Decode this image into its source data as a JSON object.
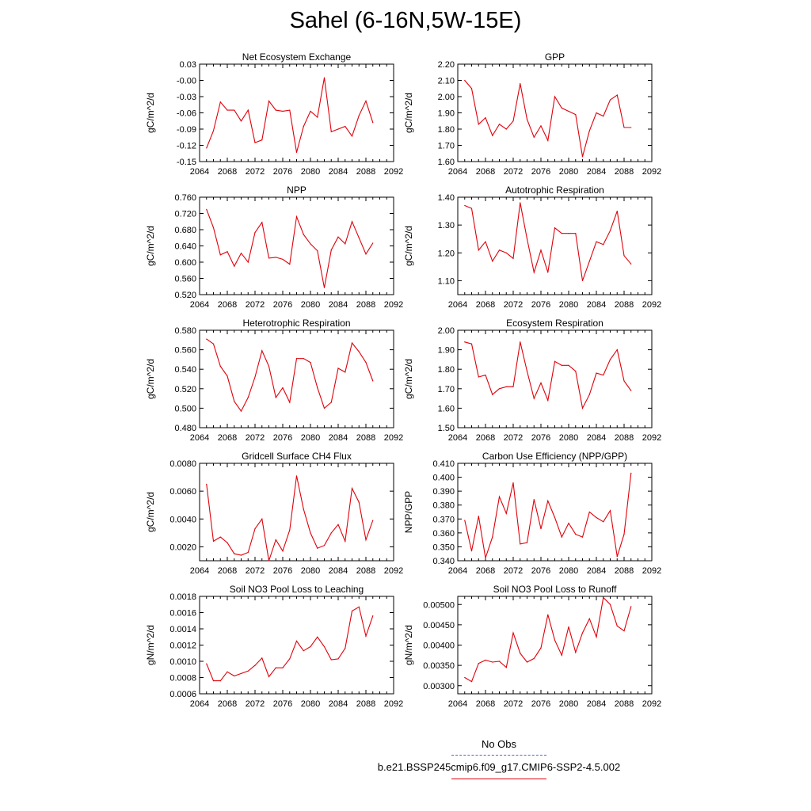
{
  "title": "Sahel (6-16N,5W-15E)",
  "legend": {
    "obs_label": "No Obs",
    "obs_color": "#5560d8",
    "case_label": "b.e21.BSSP245cmip6.f09_g17.CMIP6-SSP2-4.5.002",
    "case_color": "#e0000a"
  },
  "chart_data": [
    {
      "type": "line",
      "title": "Net Ecosystem Exchange",
      "ylabel": "gC/m^2/d",
      "xlim": [
        2064,
        2092
      ],
      "xticks": [
        "2064",
        "2068",
        "2072",
        "2076",
        "2080",
        "2084",
        "2088",
        "2092"
      ],
      "ylim": [
        -0.15,
        0.03
      ],
      "yticks": [
        "0.03",
        "-0.00",
        "-0.03",
        "-0.06",
        "-0.09",
        "-0.12",
        "-0.15"
      ],
      "x": [
        2065,
        2066,
        2067,
        2068,
        2069,
        2070,
        2071,
        2072,
        2073,
        2074,
        2075,
        2076,
        2077,
        2078,
        2079,
        2080,
        2081,
        2082,
        2083,
        2084,
        2085,
        2086,
        2087,
        2088,
        2089
      ],
      "values": [
        -0.125,
        -0.093,
        -0.04,
        -0.055,
        -0.055,
        -0.075,
        -0.055,
        -0.115,
        -0.11,
        -0.038,
        -0.055,
        -0.057,
        -0.055,
        -0.133,
        -0.085,
        -0.057,
        -0.068,
        0.005,
        -0.095,
        -0.09,
        -0.085,
        -0.103,
        -0.065,
        -0.038,
        -0.078
      ]
    },
    {
      "type": "line",
      "title": "GPP",
      "ylabel": "gC/m^2/d",
      "xlim": [
        2064,
        2092
      ],
      "xticks": [
        "2064",
        "2068",
        "2072",
        "2076",
        "2080",
        "2084",
        "2088",
        "2092"
      ],
      "ylim": [
        1.6,
        2.2
      ],
      "yticks": [
        "2.20",
        "2.10",
        "2.00",
        "1.90",
        "1.80",
        "1.70",
        "1.60"
      ],
      "x": [
        2065,
        2066,
        2067,
        2068,
        2069,
        2070,
        2071,
        2072,
        2073,
        2074,
        2075,
        2076,
        2077,
        2078,
        2079,
        2080,
        2081,
        2082,
        2083,
        2084,
        2085,
        2086,
        2087,
        2088,
        2089
      ],
      "values": [
        2.1,
        2.05,
        1.83,
        1.87,
        1.76,
        1.83,
        1.8,
        1.85,
        2.08,
        1.86,
        1.75,
        1.82,
        1.73,
        2.0,
        1.93,
        1.91,
        1.89,
        1.63,
        1.79,
        1.9,
        1.88,
        1.98,
        2.01,
        1.81,
        1.81
      ]
    },
    {
      "type": "line",
      "title": "NPP",
      "ylabel": "gC/m^2/d",
      "xlim": [
        2064,
        2092
      ],
      "xticks": [
        "2064",
        "2068",
        "2072",
        "2076",
        "2080",
        "2084",
        "2088",
        "2092"
      ],
      "ylim": [
        0.52,
        0.76
      ],
      "yticks": [
        "0.760",
        "0.720",
        "0.680",
        "0.640",
        "0.600",
        "0.560",
        "0.520"
      ],
      "x": [
        2065,
        2066,
        2067,
        2068,
        2069,
        2070,
        2071,
        2072,
        2073,
        2074,
        2075,
        2076,
        2077,
        2078,
        2079,
        2080,
        2081,
        2082,
        2083,
        2084,
        2085,
        2086,
        2087,
        2088,
        2089
      ],
      "values": [
        0.73,
        0.685,
        0.618,
        0.626,
        0.59,
        0.622,
        0.6,
        0.673,
        0.698,
        0.61,
        0.612,
        0.607,
        0.595,
        0.712,
        0.668,
        0.645,
        0.628,
        0.537,
        0.63,
        0.662,
        0.645,
        0.7,
        0.66,
        0.62,
        0.647
      ]
    },
    {
      "type": "line",
      "title": "Autotrophic Respiration",
      "ylabel": "gC/m^2/d",
      "xlim": [
        2064,
        2092
      ],
      "xticks": [
        "2064",
        "2068",
        "2072",
        "2076",
        "2080",
        "2084",
        "2088",
        "2092"
      ],
      "ylim": [
        1.05,
        1.4
      ],
      "yticks": [
        "1.40",
        "1.30",
        "1.20",
        "1.10"
      ],
      "x": [
        2065,
        2066,
        2067,
        2068,
        2069,
        2070,
        2071,
        2072,
        2073,
        2074,
        2075,
        2076,
        2077,
        2078,
        2079,
        2080,
        2081,
        2082,
        2083,
        2084,
        2085,
        2086,
        2087,
        2088,
        2089
      ],
      "values": [
        1.37,
        1.36,
        1.21,
        1.24,
        1.17,
        1.21,
        1.2,
        1.18,
        1.38,
        1.25,
        1.13,
        1.21,
        1.13,
        1.29,
        1.27,
        1.27,
        1.27,
        1.1,
        1.17,
        1.24,
        1.23,
        1.28,
        1.35,
        1.19,
        1.16
      ]
    },
    {
      "type": "line",
      "title": "Heterotrophic Respiration",
      "ylabel": "gC/m^2/d",
      "xlim": [
        2064,
        2092
      ],
      "xticks": [
        "2064",
        "2068",
        "2072",
        "2076",
        "2080",
        "2084",
        "2088",
        "2092"
      ],
      "ylim": [
        0.48,
        0.58
      ],
      "yticks": [
        "0.580",
        "0.560",
        "0.540",
        "0.520",
        "0.500",
        "0.480"
      ],
      "x": [
        2065,
        2066,
        2067,
        2068,
        2069,
        2070,
        2071,
        2072,
        2073,
        2074,
        2075,
        2076,
        2077,
        2078,
        2079,
        2080,
        2081,
        2082,
        2083,
        2084,
        2085,
        2086,
        2087,
        2088,
        2089
      ],
      "values": [
        0.571,
        0.566,
        0.543,
        0.533,
        0.507,
        0.497,
        0.511,
        0.532,
        0.559,
        0.543,
        0.511,
        0.521,
        0.506,
        0.551,
        0.551,
        0.547,
        0.521,
        0.5,
        0.506,
        0.541,
        0.537,
        0.567,
        0.558,
        0.547,
        0.528
      ]
    },
    {
      "type": "line",
      "title": "Ecosystem Respiration",
      "ylabel": "gC/m^2/d",
      "xlim": [
        2064,
        2092
      ],
      "xticks": [
        "2064",
        "2068",
        "2072",
        "2076",
        "2080",
        "2084",
        "2088",
        "2092"
      ],
      "ylim": [
        1.5,
        2.0
      ],
      "yticks": [
        "2.00",
        "1.90",
        "1.80",
        "1.70",
        "1.60",
        "1.50"
      ],
      "x": [
        2065,
        2066,
        2067,
        2068,
        2069,
        2070,
        2071,
        2072,
        2073,
        2074,
        2075,
        2076,
        2077,
        2078,
        2079,
        2080,
        2081,
        2082,
        2083,
        2084,
        2085,
        2086,
        2087,
        2088,
        2089
      ],
      "values": [
        1.94,
        1.93,
        1.76,
        1.77,
        1.67,
        1.7,
        1.71,
        1.71,
        1.94,
        1.79,
        1.65,
        1.73,
        1.64,
        1.84,
        1.82,
        1.82,
        1.79,
        1.6,
        1.67,
        1.78,
        1.77,
        1.85,
        1.9,
        1.74,
        1.69
      ]
    },
    {
      "type": "line",
      "title": "Gridcell Surface CH4 Flux",
      "ylabel": "gC/m^2/d",
      "xlim": [
        2064,
        2092
      ],
      "xticks": [
        "2064",
        "2068",
        "2072",
        "2076",
        "2080",
        "2084",
        "2088",
        "2092"
      ],
      "ylim": [
        0.001,
        0.008
      ],
      "yticks": [
        "0.0080",
        "0.0060",
        "0.0040",
        "0.0020"
      ],
      "x": [
        2065,
        2066,
        2067,
        2068,
        2069,
        2070,
        2071,
        2072,
        2073,
        2074,
        2075,
        2076,
        2077,
        2078,
        2079,
        2080,
        2081,
        2082,
        2083,
        2084,
        2085,
        2086,
        2087,
        2088,
        2089
      ],
      "values": [
        0.0065,
        0.0024,
        0.0027,
        0.0023,
        0.0015,
        0.0014,
        0.0016,
        0.0033,
        0.004,
        0.001,
        0.0025,
        0.0017,
        0.0032,
        0.0071,
        0.0047,
        0.003,
        0.0019,
        0.0021,
        0.003,
        0.0036,
        0.0024,
        0.0062,
        0.0052,
        0.0025,
        0.0039
      ]
    },
    {
      "type": "line",
      "title": "Carbon Use Efficiency (NPP/GPP)",
      "ylabel": "NPP/GPP",
      "xlim": [
        2064,
        2092
      ],
      "xticks": [
        "2064",
        "2068",
        "2072",
        "2076",
        "2080",
        "2084",
        "2088",
        "2092"
      ],
      "ylim": [
        0.34,
        0.41
      ],
      "yticks": [
        "0.410",
        "0.400",
        "0.390",
        "0.380",
        "0.370",
        "0.360",
        "0.350",
        "0.340"
      ],
      "x": [
        2065,
        2066,
        2067,
        2068,
        2069,
        2070,
        2071,
        2072,
        2073,
        2074,
        2075,
        2076,
        2077,
        2078,
        2079,
        2080,
        2081,
        2082,
        2083,
        2084,
        2085,
        2086,
        2087,
        2088,
        2089
      ],
      "values": [
        0.369,
        0.347,
        0.372,
        0.342,
        0.357,
        0.386,
        0.374,
        0.396,
        0.352,
        0.353,
        0.384,
        0.363,
        0.383,
        0.371,
        0.357,
        0.367,
        0.359,
        0.357,
        0.375,
        0.371,
        0.368,
        0.376,
        0.343,
        0.359,
        0.403
      ]
    },
    {
      "type": "line",
      "title": "Soil NO3 Pool Loss to Leaching",
      "ylabel": "gN/m^2/d",
      "xlim": [
        2064,
        2092
      ],
      "xticks": [
        "2064",
        "2068",
        "2072",
        "2076",
        "2080",
        "2084",
        "2088",
        "2092"
      ],
      "ylim": [
        0.0006,
        0.0018
      ],
      "yticks": [
        "0.0018",
        "0.0016",
        "0.0014",
        "0.0012",
        "0.0010",
        "0.0008",
        "0.0006"
      ],
      "x": [
        2065,
        2066,
        2067,
        2068,
        2069,
        2070,
        2071,
        2072,
        2073,
        2074,
        2075,
        2076,
        2077,
        2078,
        2079,
        2080,
        2081,
        2082,
        2083,
        2084,
        2085,
        2086,
        2087,
        2088,
        2089
      ],
      "values": [
        0.00097,
        0.00076,
        0.00076,
        0.00087,
        0.00082,
        0.00085,
        0.00088,
        0.00095,
        0.00104,
        0.00081,
        0.00092,
        0.00092,
        0.00103,
        0.00125,
        0.00113,
        0.00118,
        0.0013,
        0.00118,
        0.00102,
        0.00103,
        0.00116,
        0.00162,
        0.00167,
        0.00131,
        0.00156
      ]
    },
    {
      "type": "line",
      "title": "Soil NO3 Pool Loss to Runoff",
      "ylabel": "gN/m^2/d",
      "xlim": [
        2064,
        2092
      ],
      "xticks": [
        "2064",
        "2068",
        "2072",
        "2076",
        "2080",
        "2084",
        "2088",
        "2092"
      ],
      "ylim": [
        0.0028,
        0.0052
      ],
      "yticks": [
        "0.00500",
        "0.00450",
        "0.00400",
        "0.00350",
        "0.00300"
      ],
      "ytick_values": [
        0.005,
        0.0045,
        0.004,
        0.0035,
        0.003
      ],
      "x": [
        2065,
        2066,
        2067,
        2068,
        2069,
        2070,
        2071,
        2072,
        2073,
        2074,
        2075,
        2076,
        2077,
        2078,
        2079,
        2080,
        2081,
        2082,
        2083,
        2084,
        2085,
        2086,
        2087,
        2088,
        2089
      ],
      "values": [
        0.0032,
        0.0031,
        0.00355,
        0.00363,
        0.00358,
        0.0036,
        0.00345,
        0.0043,
        0.0038,
        0.00358,
        0.00367,
        0.00393,
        0.00475,
        0.00412,
        0.00375,
        0.00445,
        0.00382,
        0.0043,
        0.00465,
        0.0042,
        0.00517,
        0.005,
        0.00447,
        0.00435,
        0.00495
      ]
    }
  ]
}
